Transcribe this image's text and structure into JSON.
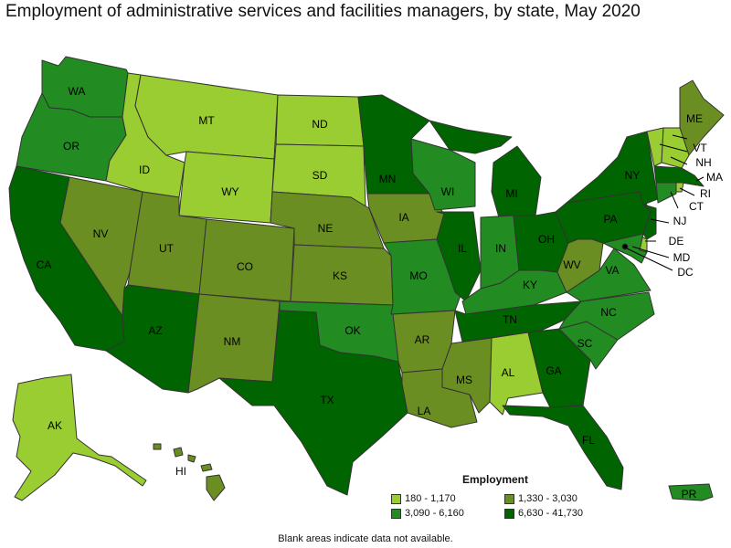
{
  "title": "Employment of administrative services and facilities managers, by state, May 2020",
  "footnote": "Blank areas indicate data not available.",
  "legend": {
    "title": "Employment",
    "items": [
      {
        "label": "180 - 1,170",
        "color": "#9acd32"
      },
      {
        "label": "1,330 - 3,030",
        "color": "#6b8e23"
      },
      {
        "label": "3,090 - 6,160",
        "color": "#228b22"
      },
      {
        "label": "6,630 - 41,730",
        "color": "#006400"
      }
    ]
  },
  "states": {
    "WA": "3",
    "OR": "3",
    "CA": "4",
    "NV": "2",
    "ID": "1",
    "MT": "1",
    "WY": "1",
    "UT": "2",
    "AZ": "4",
    "CO": "2",
    "NM": "2",
    "ND": "1",
    "SD": "1",
    "NE": "2",
    "KS": "2",
    "OK": "3",
    "TX": "4",
    "MN": "4",
    "IA": "2",
    "MO": "3",
    "AR": "2",
    "LA": "2",
    "WI": "3",
    "IL": "4",
    "MI": "4",
    "IN": "3",
    "OH": "4",
    "KY": "3",
    "TN": "4",
    "MS": "2",
    "AL": "1",
    "GA": "4",
    "FL": "4",
    "SC": "3",
    "NC": "3",
    "VA": "3",
    "WV": "2",
    "PA": "4",
    "NY": "4",
    "ME": "2",
    "VT": "1",
    "NH": "1",
    "MA": "4",
    "RI": "1",
    "CT": "3",
    "NJ": "4",
    "DE": "1",
    "MD": "3",
    "DC": "3",
    "AK": "1",
    "HI": "2",
    "PR": "3"
  },
  "labels": [
    "WA",
    "OR",
    "CA",
    "NV",
    "ID",
    "MT",
    "WY",
    "UT",
    "AZ",
    "CO",
    "NM",
    "ND",
    "SD",
    "NE",
    "KS",
    "OK",
    "TX",
    "MN",
    "IA",
    "MO",
    "AR",
    "LA",
    "WI",
    "IL",
    "MI",
    "IN",
    "OH",
    "KY",
    "TN",
    "MS",
    "AL",
    "GA",
    "FL",
    "SC",
    "NC",
    "VA",
    "WV",
    "PA",
    "NY",
    "ME",
    "VT",
    "NH",
    "MA",
    "RI",
    "CT",
    "NJ",
    "DE",
    "MD",
    "DC",
    "AK",
    "HI",
    "PR"
  ]
}
